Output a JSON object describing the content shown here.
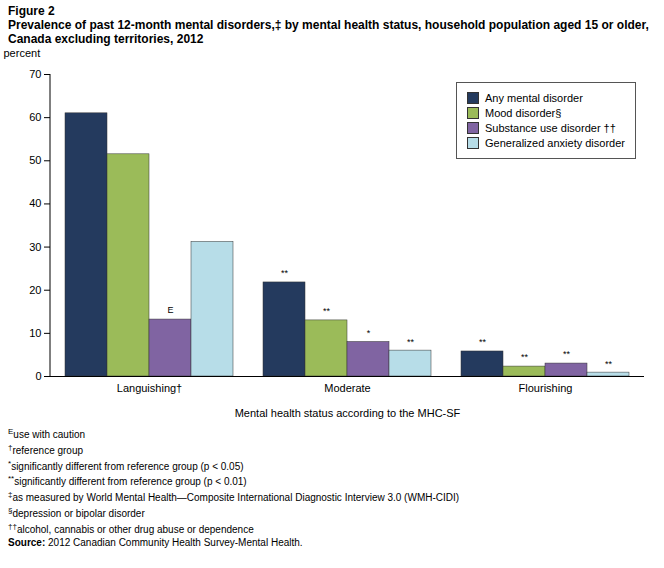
{
  "chart_data": {
    "type": "bar",
    "figure_label": "Figure 2",
    "title": "Prevalence of past 12-month mental disorders,‡ by mental health status, household population aged 15 or older, Canada excluding territories, 2012",
    "y_label": "percent",
    "x_label": "Mental health status according to the MHC-SF",
    "categories": [
      "Languishing†",
      "Moderate",
      "Flourishing"
    ],
    "series": [
      {
        "name": "Any mental disorder",
        "color": "#243a5e",
        "values": [
          61.0,
          21.8,
          5.8
        ],
        "annotations": [
          null,
          "**",
          "**"
        ]
      },
      {
        "name": "Mood disorder§",
        "color": "#9bbb59",
        "values": [
          51.5,
          13.0,
          2.3
        ],
        "annotations": [
          null,
          "**",
          "**"
        ]
      },
      {
        "name": "Substance use disorder ††",
        "color": "#8064a2",
        "values": [
          13.2,
          8.0,
          3.0
        ],
        "annotations": [
          "E",
          "*",
          "**"
        ]
      },
      {
        "name": "Generalized anxiety disorder",
        "color": "#b7dde8",
        "values": [
          31.2,
          6.0,
          0.9
        ],
        "annotations": [
          null,
          "**",
          "**"
        ]
      }
    ],
    "ylim": [
      0,
      70
    ],
    "yticks": [
      0,
      10,
      20,
      30,
      40,
      50,
      60,
      70
    ],
    "grid": false,
    "legend": "top-right",
    "footnotes": [
      {
        "symbol": "E",
        "text": "use with caution"
      },
      {
        "symbol": "†",
        "text": "reference group"
      },
      {
        "symbol": "*",
        "text": "significantly different from reference group (p < 0.05)"
      },
      {
        "symbol": "**",
        "text": "significantly different from reference group (p < 0.01)"
      },
      {
        "symbol": "‡",
        "text": "as measured by World Mental Health—Composite International Diagnostic Interview 3.0 (WMH-CIDI)"
      },
      {
        "symbol": "§",
        "text": "depression or bipolar disorder"
      },
      {
        "symbol": "††",
        "text": "alcohol, cannabis or other drug abuse or dependence"
      }
    ],
    "source": "Source: 2012 Canadian Community Health Survey-Mental Health."
  }
}
